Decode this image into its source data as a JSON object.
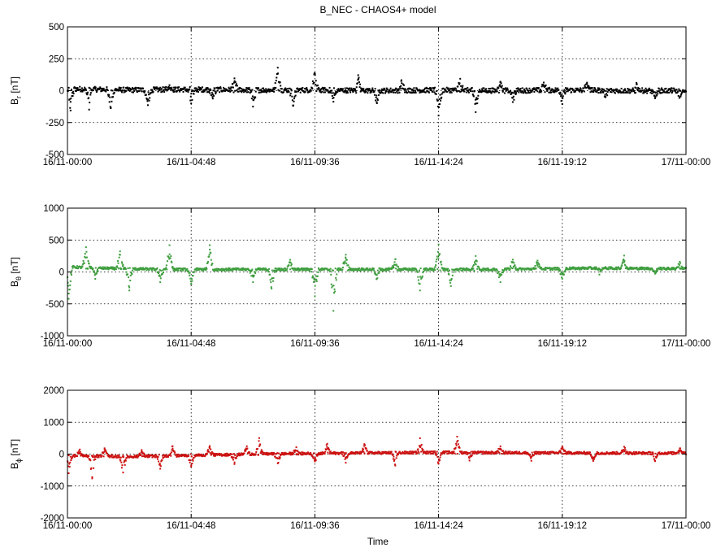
{
  "figure": {
    "title": "B_NEC - CHAOS4+ model",
    "xlabel": "Time"
  },
  "chart_data": [
    {
      "type": "scatter",
      "ylabel_main": "B",
      "ylabel_sub": "r",
      "ylabel_unit": " [nT]",
      "ylim": [
        -500,
        500
      ],
      "yticks": [
        -500,
        -250,
        0,
        250,
        500
      ],
      "xlim": [
        "16/11-00:00",
        "17/11-00:00"
      ],
      "xticks": [
        "16/11-00:00",
        "16/11-04:48",
        "16/11-09:36",
        "16/11-14:24",
        "16/11-19:12",
        "17/11-00:00"
      ],
      "grid": true,
      "color": "#000000",
      "series": [
        {
          "baseline": [
            [
              0,
              15
            ],
            [
              0.05,
              10
            ],
            [
              0.1,
              5
            ],
            [
              0.2,
              10
            ],
            [
              0.3,
              5
            ],
            [
              0.4,
              5
            ],
            [
              0.5,
              0
            ],
            [
              0.6,
              5
            ],
            [
              0.7,
              0
            ],
            [
              0.8,
              5
            ],
            [
              0.9,
              0
            ],
            [
              1,
              0
            ]
          ],
          "noise": 20,
          "spikes": [
            {
              "t": 0.005,
              "v": -170
            },
            {
              "t": 0.035,
              "v": -160
            },
            {
              "t": 0.07,
              "v": -145
            },
            {
              "t": 0.13,
              "v": -120
            },
            {
              "t": 0.165,
              "v": 35
            },
            {
              "t": 0.2,
              "v": -110
            },
            {
              "t": 0.235,
              "v": -70
            },
            {
              "t": 0.27,
              "v": 90
            },
            {
              "t": 0.3,
              "v": -130
            },
            {
              "t": 0.34,
              "v": 175
            },
            {
              "t": 0.365,
              "v": -120
            },
            {
              "t": 0.4,
              "v": 130
            },
            {
              "t": 0.43,
              "v": -90
            },
            {
              "t": 0.47,
              "v": 120
            },
            {
              "t": 0.5,
              "v": -90
            },
            {
              "t": 0.54,
              "v": 80
            },
            {
              "t": 0.6,
              "v": -200
            },
            {
              "t": 0.635,
              "v": 90
            },
            {
              "t": 0.66,
              "v": -170
            },
            {
              "t": 0.7,
              "v": 70
            },
            {
              "t": 0.72,
              "v": -90
            },
            {
              "t": 0.77,
              "v": 60
            },
            {
              "t": 0.8,
              "v": -110
            },
            {
              "t": 0.84,
              "v": 60
            },
            {
              "t": 0.87,
              "v": -50
            },
            {
              "t": 0.92,
              "v": 50
            },
            {
              "t": 0.95,
              "v": -60
            },
            {
              "t": 0.99,
              "v": -50
            }
          ]
        }
      ]
    },
    {
      "type": "scatter",
      "ylabel_main": "B",
      "ylabel_sub": "θ",
      "ylabel_unit": " [nT]",
      "ylim": [
        -1000,
        1000
      ],
      "yticks": [
        -1000,
        -500,
        0,
        500,
        1000
      ],
      "xlim": [
        "16/11-00:00",
        "17/11-00:00"
      ],
      "xticks": [
        "16/11-00:00",
        "16/11-04:48",
        "16/11-09:36",
        "16/11-14:24",
        "16/11-19:12",
        "17/11-00:00"
      ],
      "grid": true,
      "color": "#3f9e3f",
      "series": [
        {
          "baseline": [
            [
              0,
              80
            ],
            [
              0.05,
              60
            ],
            [
              0.15,
              40
            ],
            [
              0.3,
              40
            ],
            [
              0.5,
              40
            ],
            [
              0.7,
              40
            ],
            [
              0.85,
              60
            ],
            [
              1,
              50
            ]
          ],
          "noise": 20,
          "spikes": [
            {
              "t": 0.002,
              "v": -500
            },
            {
              "t": 0.03,
              "v": 320
            },
            {
              "t": 0.045,
              "v": -170
            },
            {
              "t": 0.085,
              "v": 270
            },
            {
              "t": 0.1,
              "v": -340
            },
            {
              "t": 0.15,
              "v": -200
            },
            {
              "t": 0.165,
              "v": 380
            },
            {
              "t": 0.2,
              "v": -230
            },
            {
              "t": 0.23,
              "v": 380
            },
            {
              "t": 0.3,
              "v": -200
            },
            {
              "t": 0.33,
              "v": -300
            },
            {
              "t": 0.36,
              "v": 150
            },
            {
              "t": 0.4,
              "v": -420
            },
            {
              "t": 0.43,
              "v": -650
            },
            {
              "t": 0.45,
              "v": 230
            },
            {
              "t": 0.5,
              "v": -150
            },
            {
              "t": 0.53,
              "v": 160
            },
            {
              "t": 0.57,
              "v": -330
            },
            {
              "t": 0.6,
              "v": 390
            },
            {
              "t": 0.62,
              "v": -260
            },
            {
              "t": 0.66,
              "v": 210
            },
            {
              "t": 0.7,
              "v": -200
            },
            {
              "t": 0.72,
              "v": 150
            },
            {
              "t": 0.76,
              "v": 130
            },
            {
              "t": 0.8,
              "v": -160
            },
            {
              "t": 0.86,
              "v": -100
            },
            {
              "t": 0.9,
              "v": 200
            },
            {
              "t": 0.95,
              "v": -80
            },
            {
              "t": 0.99,
              "v": 110
            }
          ]
        }
      ]
    },
    {
      "type": "scatter",
      "ylabel_main": "B",
      "ylabel_sub": "ϕ",
      "ylabel_unit": " [nT]",
      "ylim": [
        -2000,
        2000
      ],
      "yticks": [
        -2000,
        -1000,
        0,
        1000,
        2000
      ],
      "xlim": [
        "16/11-00:00",
        "17/11-00:00"
      ],
      "xticks": [
        "16/11-00:00",
        "16/11-04:48",
        "16/11-09:36",
        "16/11-14:24",
        "16/11-19:12",
        "17/11-00:00"
      ],
      "grid": true,
      "color": "#cc1111",
      "series": [
        {
          "baseline": [
            [
              0,
              -50
            ],
            [
              0.1,
              -80
            ],
            [
              0.2,
              -40
            ],
            [
              0.3,
              0
            ],
            [
              0.45,
              30
            ],
            [
              0.6,
              50
            ],
            [
              0.75,
              40
            ],
            [
              0.9,
              30
            ],
            [
              1,
              30
            ]
          ],
          "noise": 40,
          "spikes": [
            {
              "t": 0.002,
              "v": -550
            },
            {
              "t": 0.02,
              "v": 200
            },
            {
              "t": 0.04,
              "v": -700
            },
            {
              "t": 0.06,
              "v": 250
            },
            {
              "t": 0.09,
              "v": -500
            },
            {
              "t": 0.12,
              "v": 200
            },
            {
              "t": 0.15,
              "v": -400
            },
            {
              "t": 0.17,
              "v": 300
            },
            {
              "t": 0.2,
              "v": -350
            },
            {
              "t": 0.23,
              "v": 280
            },
            {
              "t": 0.27,
              "v": -300
            },
            {
              "t": 0.29,
              "v": 250
            },
            {
              "t": 0.31,
              "v": 500
            },
            {
              "t": 0.34,
              "v": -300
            },
            {
              "t": 0.37,
              "v": 200
            },
            {
              "t": 0.4,
              "v": -250
            },
            {
              "t": 0.42,
              "v": 300
            },
            {
              "t": 0.45,
              "v": -300
            },
            {
              "t": 0.48,
              "v": 280
            },
            {
              "t": 0.53,
              "v": -400
            },
            {
              "t": 0.57,
              "v": 450
            },
            {
              "t": 0.6,
              "v": -350
            },
            {
              "t": 0.63,
              "v": 500
            },
            {
              "t": 0.65,
              "v": -250
            },
            {
              "t": 0.7,
              "v": 200
            },
            {
              "t": 0.75,
              "v": -250
            },
            {
              "t": 0.8,
              "v": 200
            },
            {
              "t": 0.85,
              "v": -250
            },
            {
              "t": 0.9,
              "v": 200
            },
            {
              "t": 0.95,
              "v": -250
            },
            {
              "t": 0.99,
              "v": 150
            }
          ]
        }
      ]
    }
  ]
}
